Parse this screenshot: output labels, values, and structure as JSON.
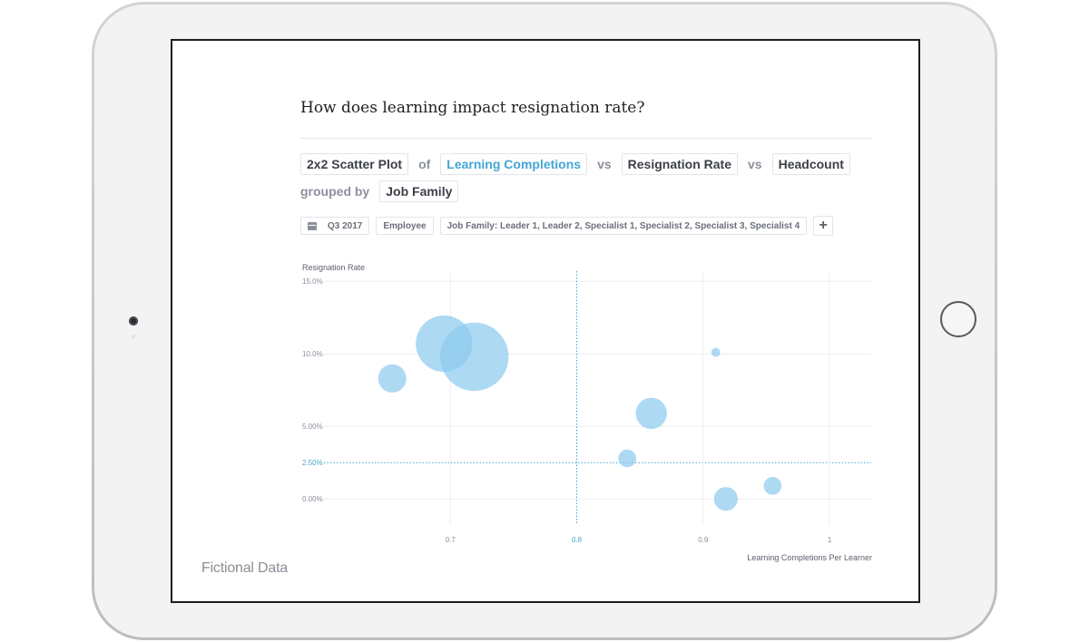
{
  "question": "How does learning impact resignation rate?",
  "query": {
    "chart_type_label": "2x2 Scatter Plot",
    "of_label": "of",
    "x_measure": "Learning Completions",
    "vs_label_1": "vs",
    "y_measure": "Resignation Rate",
    "vs_label_2": "vs",
    "size_measure": "Headcount",
    "grouped_by_label": "grouped by",
    "group": "Job Family"
  },
  "filters": {
    "period": "Q3 2017",
    "population": "Employee",
    "job_family": "Job Family: Leader 1, Leader 2, Specialist 1, Specialist 2, Specialist 3, Specialist 4",
    "add_label": "+"
  },
  "watermark": "Fictional Data",
  "colors": {
    "bubble": "#8fcbee",
    "accent": "#44a6d3",
    "grid": "#ebedf0"
  },
  "icons": {
    "period": "calendar-icon",
    "add": "plus-icon"
  },
  "chart_data": {
    "type": "scatter",
    "title": "",
    "xlabel": "Learning Completions Per Learner",
    "ylabel": "Resignation Rate",
    "xlim": [
      0.6,
      1.033
    ],
    "ylim": [
      -0.8,
      15.2
    ],
    "x_ticks": [
      {
        "value": 0.7,
        "label": "0.7"
      },
      {
        "value": 0.8,
        "label": "0.8",
        "highlight": true
      },
      {
        "value": 0.9,
        "label": "0.9"
      },
      {
        "value": 1.0,
        "label": "1"
      }
    ],
    "y_ticks": [
      {
        "value": 15,
        "label": "15.0%"
      },
      {
        "value": 10,
        "label": "10.0%"
      },
      {
        "value": 5,
        "label": "5.00%"
      },
      {
        "value": 2.5,
        "label": "2.50%",
        "highlight": true
      },
      {
        "value": 0,
        "label": "0.00%"
      }
    ],
    "reference_lines": {
      "x": 0.8,
      "y": 2.5
    },
    "grid": true,
    "size_encoding": "Headcount",
    "points": [
      {
        "x": 0.654,
        "y": 8.3,
        "size": 19
      },
      {
        "x": 0.695,
        "y": 10.7,
        "size": 38
      },
      {
        "x": 0.719,
        "y": 9.8,
        "size": 46
      },
      {
        "x": 0.84,
        "y": 2.8,
        "size": 12
      },
      {
        "x": 0.859,
        "y": 5.9,
        "size": 21
      },
      {
        "x": 0.91,
        "y": 10.1,
        "size": 6
      },
      {
        "x": 0.918,
        "y": 0.0,
        "size": 16
      },
      {
        "x": 0.955,
        "y": 0.9,
        "size": 12
      }
    ]
  }
}
